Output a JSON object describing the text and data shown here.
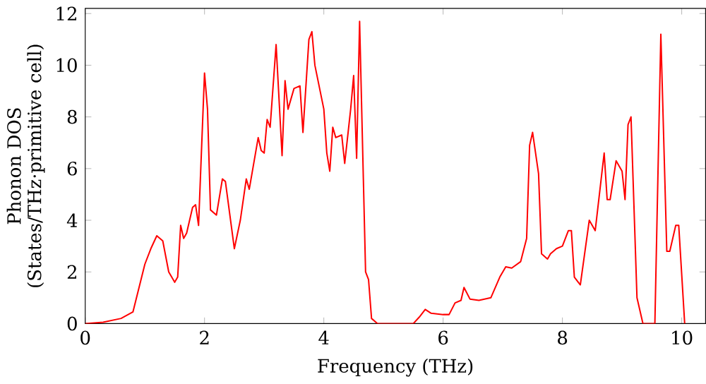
{
  "chart_data": {
    "type": "line",
    "xlabel": "Frequency (THz)",
    "ylabel": "Phonon DOS (States/THz·primitive cell)",
    "color": "#ff0000",
    "xlim": [
      0,
      10.4
    ],
    "ylim": [
      0,
      12.2
    ],
    "xticks": [
      0,
      2,
      4,
      6,
      8,
      10
    ],
    "yticks": [
      0,
      2,
      4,
      6,
      8,
      10,
      12
    ],
    "grid": false,
    "x": [
      0,
      0.3,
      0.6,
      0.8,
      1.0,
      1.1,
      1.2,
      1.3,
      1.4,
      1.5,
      1.55,
      1.6,
      1.65,
      1.7,
      1.8,
      1.85,
      1.9,
      2.0,
      2.05,
      2.1,
      2.2,
      2.3,
      2.35,
      2.5,
      2.6,
      2.7,
      2.75,
      2.9,
      2.95,
      3.0,
      3.05,
      3.1,
      3.2,
      3.3,
      3.35,
      3.4,
      3.5,
      3.6,
      3.65,
      3.75,
      3.8,
      3.85,
      4.0,
      4.05,
      4.1,
      4.15,
      4.2,
      4.3,
      4.35,
      4.45,
      4.5,
      4.55,
      4.6,
      4.7,
      4.75,
      4.8,
      4.9,
      5.5,
      5.6,
      5.7,
      5.8,
      6.0,
      6.1,
      6.2,
      6.3,
      6.35,
      6.45,
      6.6,
      6.8,
      6.95,
      7.05,
      7.15,
      7.3,
      7.4,
      7.45,
      7.5,
      7.6,
      7.65,
      7.75,
      7.8,
      7.9,
      8.0,
      8.1,
      8.15,
      8.2,
      8.3,
      8.45,
      8.55,
      8.65,
      8.7,
      8.75,
      8.8,
      8.9,
      9.0,
      9.05,
      9.1,
      9.15,
      9.25,
      9.35,
      9.55,
      9.65,
      9.75,
      9.8,
      9.9,
      9.95,
      10.05
    ],
    "values": [
      0,
      0.05,
      0.2,
      0.45,
      2.3,
      2.9,
      3.4,
      3.2,
      2.0,
      1.6,
      1.8,
      3.8,
      3.3,
      3.5,
      4.5,
      4.6,
      3.8,
      9.7,
      8.3,
      4.4,
      4.2,
      5.6,
      5.5,
      2.9,
      4.0,
      5.6,
      5.2,
      7.2,
      6.7,
      6.6,
      7.9,
      7.6,
      10.8,
      6.5,
      9.4,
      8.3,
      9.1,
      9.2,
      7.4,
      11.0,
      11.3,
      10.0,
      8.3,
      6.6,
      5.9,
      7.6,
      7.2,
      7.3,
      6.2,
      8.3,
      9.6,
      6.4,
      11.7,
      2.0,
      1.7,
      0.2,
      0,
      0,
      0.25,
      0.55,
      0.4,
      0.35,
      0.35,
      0.8,
      0.9,
      1.4,
      0.95,
      0.9,
      1.0,
      1.8,
      2.2,
      2.15,
      2.4,
      3.3,
      6.9,
      7.4,
      5.8,
      2.7,
      2.5,
      2.7,
      2.9,
      3.0,
      3.6,
      3.6,
      1.8,
      1.5,
      4.0,
      3.6,
      5.6,
      6.6,
      4.8,
      4.8,
      6.3,
      5.9,
      4.8,
      7.7,
      8.0,
      1.0,
      0,
      0,
      11.2,
      2.8,
      2.8,
      3.8,
      3.8,
      0
    ]
  }
}
